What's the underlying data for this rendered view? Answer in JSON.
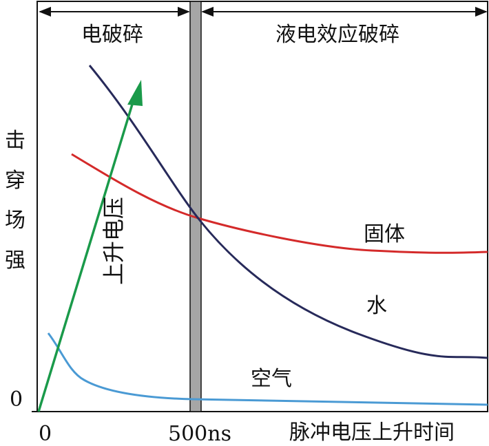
{
  "regions": {
    "left": "电破碎",
    "right": "液电效应破碎"
  },
  "y_axis": {
    "label_chars": [
      "击",
      "穿",
      "场",
      "强"
    ],
    "zero": "0"
  },
  "x_axis": {
    "zero": "0",
    "mark": "500ns",
    "label": "脉冲电压上升时间"
  },
  "arrow": {
    "label": "上升电压",
    "color": "#1a9a4a"
  },
  "curves": {
    "solid": {
      "label": "固体",
      "color": "#d42a2a"
    },
    "water": {
      "label": "水",
      "color": "#272a5a"
    },
    "air": {
      "label": "空气",
      "color": "#4a9ad4"
    }
  },
  "divider_color": "#a6a6a6"
}
